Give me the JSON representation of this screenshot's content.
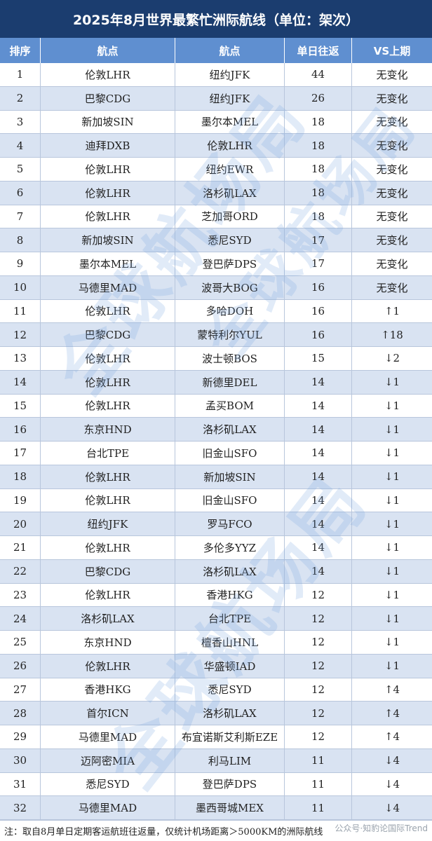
{
  "title": "2025年8月世界最繁忙洲际航线（单位：架次）",
  "columns": [
    "排序",
    "航点",
    "航点",
    "单日往返",
    "VS上期"
  ],
  "rows": [
    {
      "rank": "1",
      "from": "伦敦LHR",
      "to": "纽约JFK",
      "freq": "44",
      "vs": "无变化"
    },
    {
      "rank": "2",
      "from": "巴黎CDG",
      "to": "纽约JFK",
      "freq": "26",
      "vs": "无变化"
    },
    {
      "rank": "3",
      "from": "新加坡SIN",
      "to": "墨尔本MEL",
      "freq": "18",
      "vs": "无变化"
    },
    {
      "rank": "4",
      "from": "迪拜DXB",
      "to": "伦敦LHR",
      "freq": "18",
      "vs": "无变化"
    },
    {
      "rank": "5",
      "from": "伦敦LHR",
      "to": "纽约EWR",
      "freq": "18",
      "vs": "无变化"
    },
    {
      "rank": "6",
      "from": "伦敦LHR",
      "to": "洛杉矶LAX",
      "freq": "18",
      "vs": "无变化"
    },
    {
      "rank": "7",
      "from": "伦敦LHR",
      "to": "芝加哥ORD",
      "freq": "18",
      "vs": "无变化"
    },
    {
      "rank": "8",
      "from": "新加坡SIN",
      "to": "悉尼SYD",
      "freq": "17",
      "vs": "无变化"
    },
    {
      "rank": "9",
      "from": "墨尔本MEL",
      "to": "登巴萨DPS",
      "freq": "17",
      "vs": "无变化"
    },
    {
      "rank": "10",
      "from": "马德里MAD",
      "to": "波哥大BOG",
      "freq": "16",
      "vs": "无变化"
    },
    {
      "rank": "11",
      "from": "伦敦LHR",
      "to": "多哈DOH",
      "freq": "16",
      "vs": "↑1"
    },
    {
      "rank": "12",
      "from": "巴黎CDG",
      "to": "蒙特利尔YUL",
      "freq": "16",
      "vs": "↑18"
    },
    {
      "rank": "13",
      "from": "伦敦LHR",
      "to": "波士顿BOS",
      "freq": "15",
      "vs": "↓2"
    },
    {
      "rank": "14",
      "from": "伦敦LHR",
      "to": "新德里DEL",
      "freq": "14",
      "vs": "↓1"
    },
    {
      "rank": "15",
      "from": "伦敦LHR",
      "to": "孟买BOM",
      "freq": "14",
      "vs": "↓1"
    },
    {
      "rank": "16",
      "from": "东京HND",
      "to": "洛杉矶LAX",
      "freq": "14",
      "vs": "↓1"
    },
    {
      "rank": "17",
      "from": "台北TPE",
      "to": "旧金山SFO",
      "freq": "14",
      "vs": "↓1"
    },
    {
      "rank": "18",
      "from": "伦敦LHR",
      "to": "新加坡SIN",
      "freq": "14",
      "vs": "↓1"
    },
    {
      "rank": "19",
      "from": "伦敦LHR",
      "to": "旧金山SFO",
      "freq": "14",
      "vs": "↓1"
    },
    {
      "rank": "20",
      "from": "纽约JFK",
      "to": "罗马FCO",
      "freq": "14",
      "vs": "↓1"
    },
    {
      "rank": "21",
      "from": "伦敦LHR",
      "to": "多伦多YYZ",
      "freq": "14",
      "vs": "↓1"
    },
    {
      "rank": "22",
      "from": "巴黎CDG",
      "to": "洛杉矶LAX",
      "freq": "14",
      "vs": "↓1"
    },
    {
      "rank": "23",
      "from": "伦敦LHR",
      "to": "香港HKG",
      "freq": "12",
      "vs": "↓1"
    },
    {
      "rank": "24",
      "from": "洛杉矶LAX",
      "to": "台北TPE",
      "freq": "12",
      "vs": "↓1"
    },
    {
      "rank": "25",
      "from": "东京HND",
      "to": "檀香山HNL",
      "freq": "12",
      "vs": "↓1"
    },
    {
      "rank": "26",
      "from": "伦敦LHR",
      "to": "华盛顿IAD",
      "freq": "12",
      "vs": "↓1"
    },
    {
      "rank": "27",
      "from": "香港HKG",
      "to": "悉尼SYD",
      "freq": "12",
      "vs": "↑4"
    },
    {
      "rank": "28",
      "from": "首尔ICN",
      "to": "洛杉矶LAX",
      "freq": "12",
      "vs": "↑4"
    },
    {
      "rank": "29",
      "from": "马德里MAD",
      "to": "布宜诺斯艾利斯EZE",
      "freq": "12",
      "vs": "↑4"
    },
    {
      "rank": "30",
      "from": "迈阿密MIA",
      "to": "利马LIM",
      "freq": "11",
      "vs": "↓4"
    },
    {
      "rank": "31",
      "from": "悉尼SYD",
      "to": "登巴萨DPS",
      "freq": "11",
      "vs": "↓4"
    },
    {
      "rank": "32",
      "from": "马德里MAD",
      "to": "墨西哥城MEX",
      "freq": "11",
      "vs": "↓4"
    }
  ],
  "watermark": "全球航场局",
  "footer": {
    "note": "注：取自8月单日定期客运航班往返量，仅统计机场距离＞5000KM的洲际航线",
    "credit": "公众号·知豹论国际Trend"
  }
}
